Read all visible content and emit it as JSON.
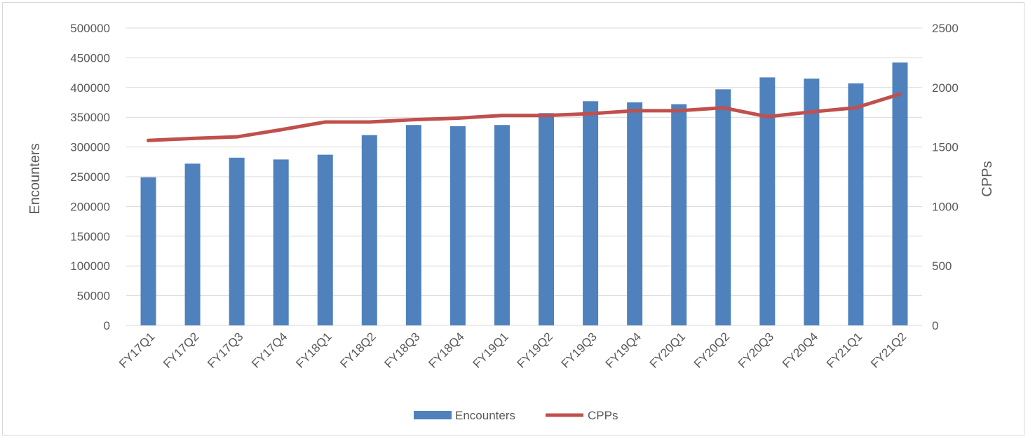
{
  "chart_data": {
    "type": "bar",
    "categories": [
      "FY17Q1",
      "FY17Q2",
      "FY17Q3",
      "FY17Q4",
      "FY18Q1",
      "FY18Q2",
      "FY18Q3",
      "FY18Q4",
      "FY19Q1",
      "FY19Q2",
      "FY19Q3",
      "FY19Q4",
      "FY20Q1",
      "FY20Q2",
      "FY20Q3",
      "FY20Q4",
      "FY21Q1",
      "FY21Q2"
    ],
    "series": [
      {
        "name": "Encounters",
        "type": "bar",
        "axis": "left",
        "color": "#4f81bd",
        "values": [
          249000,
          272000,
          282000,
          279000,
          287000,
          320000,
          337000,
          335000,
          337000,
          357000,
          377000,
          375000,
          372000,
          397000,
          417000,
          415000,
          407000,
          442000
        ]
      },
      {
        "name": "CPPs",
        "type": "line",
        "axis": "right",
        "color": "#c0504d",
        "values": [
          1555,
          1572,
          1585,
          1645,
          1710,
          1710,
          1730,
          1742,
          1765,
          1765,
          1780,
          1805,
          1805,
          1830,
          1755,
          1795,
          1830,
          1945
        ]
      }
    ],
    "ylabel": "Encounters",
    "y2label": "CPPs",
    "ylim": [
      0,
      500000
    ],
    "y2lim": [
      0,
      2500
    ],
    "yticks": [
      "0",
      "50000",
      "100000",
      "150000",
      "200000",
      "250000",
      "300000",
      "350000",
      "400000",
      "450000",
      "500000"
    ],
    "y2ticks": [
      "0",
      "500",
      "1000",
      "1500",
      "2000",
      "2500"
    ],
    "grid": true,
    "legend_position": "bottom"
  }
}
